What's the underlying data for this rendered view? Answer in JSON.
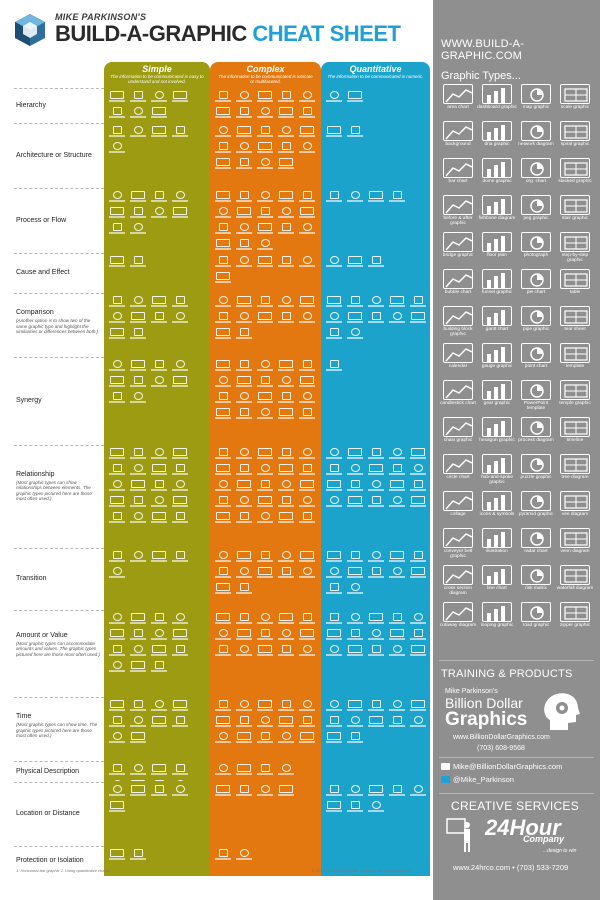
{
  "header": {
    "author": "MIKE PARKINSON'S",
    "title_main": "BUILD-A-GRAPHIC",
    "title_accent": "CHEAT SHEET"
  },
  "columns": [
    {
      "key": "simple",
      "title": "Simple",
      "desc": "The information to be communicated is easy to understand and not involved.",
      "color": "#9c9b11"
    },
    {
      "key": "complex",
      "title": "Complex",
      "desc": "The information to be communicated is intricate or multifaceted.",
      "color": "#e2780f"
    },
    {
      "key": "quant",
      "title": "Quantitative",
      "desc": "The information to be communicated is numeric.",
      "color": "#1ca3cc"
    }
  ],
  "rows": [
    {
      "label": "Hierarchy",
      "sub": "",
      "counts": [
        7,
        10,
        2
      ]
    },
    {
      "label": "Architecture or Structure",
      "sub": "",
      "counts": [
        5,
        14,
        2
      ]
    },
    {
      "label": "Process or Flow",
      "sub": "",
      "counts": [
        10,
        18,
        4
      ]
    },
    {
      "label": "Cause and Effect",
      "sub": "",
      "counts": [
        2,
        6,
        3
      ]
    },
    {
      "label": "Comparison",
      "sub": "(Another option is to show two of the same graphic type and highlight the similarities or differences between both.)",
      "counts": [
        10,
        12,
        12
      ]
    },
    {
      "label": "Synergy",
      "sub": "",
      "counts": [
        10,
        20,
        1
      ]
    },
    {
      "label": "Relationship",
      "sub": "(Most graphic types can show relationships between elements. The graphic types pictured here are those most often used.)",
      "counts": [
        20,
        25,
        20
      ]
    },
    {
      "label": "Transition",
      "sub": "",
      "counts": [
        5,
        12,
        12
      ]
    },
    {
      "label": "Amount or Value",
      "sub": "(Most graphic types can accommodate amounts and values. The graphic types pictured here are those most often used.)",
      "counts": [
        15,
        15,
        15
      ]
    },
    {
      "label": "Time",
      "sub": "(Most graphic types can show time. The graphic types pictured here are those most often used.)",
      "counts": [
        10,
        15,
        12
      ]
    },
    {
      "label": "Physical Description",
      "sub": "",
      "counts": [
        8,
        4,
        0
      ]
    },
    {
      "label": "Location or Distance",
      "sub": "",
      "counts": [
        5,
        4,
        8
      ]
    },
    {
      "label": "Protection or Isolation",
      "sub": "",
      "counts": [
        2,
        2,
        0
      ]
    }
  ],
  "footnote": "1. Horizontal bar graphic\n2. Using quantitative charts",
  "copyright": "© 2013-2014 Billion Dollar Graphics. All rights reserved.",
  "sidebar": {
    "site_url": "WWW.BUILD-A-GRAPHIC.COM",
    "types_title": "Graphic Types...",
    "types": [
      {
        "label": "area chart",
        "icon": "area-chart-icon"
      },
      {
        "label": "dashboard graphic",
        "icon": "dashboard-icon"
      },
      {
        "label": "map graphic",
        "icon": "map-icon"
      },
      {
        "label": "scale graphic",
        "icon": "scale-icon"
      },
      {
        "label": "background",
        "icon": "background-icon"
      },
      {
        "label": "dna graphic",
        "icon": "dna-icon"
      },
      {
        "label": "network diagram",
        "icon": "network-icon"
      },
      {
        "label": "spiral graphic",
        "icon": "spiral-icon"
      },
      {
        "label": "bar chart",
        "icon": "bar-chart-icon"
      },
      {
        "label": "dome graphic",
        "icon": "dome-icon"
      },
      {
        "label": "org. chart",
        "icon": "org-chart-icon"
      },
      {
        "label": "stacked graphic",
        "icon": "stacked-icon"
      },
      {
        "label": "before & after graphic",
        "icon": "before-after-icon"
      },
      {
        "label": "fishbone diagram",
        "icon": "fishbone-icon"
      },
      {
        "label": "peg graphic",
        "icon": "peg-icon"
      },
      {
        "label": "stair graphic",
        "icon": "stair-icon"
      },
      {
        "label": "bridge graphic",
        "icon": "bridge-icon"
      },
      {
        "label": "floor plan",
        "icon": "floor-plan-icon"
      },
      {
        "label": "photograph",
        "icon": "photograph-icon"
      },
      {
        "label": "step-by-step graphic",
        "icon": "step-icon"
      },
      {
        "label": "bubble chart",
        "icon": "bubble-chart-icon"
      },
      {
        "label": "funnel graphic",
        "icon": "funnel-icon"
      },
      {
        "label": "pie chart",
        "icon": "pie-chart-icon"
      },
      {
        "label": "table",
        "icon": "table-icon"
      },
      {
        "label": "building block graphic",
        "icon": "building-block-icon"
      },
      {
        "label": "gantt chart",
        "icon": "gantt-icon"
      },
      {
        "label": "pipe graphic",
        "icon": "pipe-icon"
      },
      {
        "label": "tear sheet",
        "icon": "tear-sheet-icon"
      },
      {
        "label": "calendar",
        "icon": "calendar-icon"
      },
      {
        "label": "gauge graphic",
        "icon": "gauge-icon"
      },
      {
        "label": "point chart",
        "icon": "point-chart-icon"
      },
      {
        "label": "template",
        "icon": "template-icon"
      },
      {
        "label": "candlestick chart",
        "icon": "candlestick-icon"
      },
      {
        "label": "gear graphic",
        "icon": "gear-icon"
      },
      {
        "label": "PowerPoint template",
        "icon": "powerpoint-icon"
      },
      {
        "label": "temple graphic",
        "icon": "temple-icon"
      },
      {
        "label": "chain graphic",
        "icon": "chain-icon"
      },
      {
        "label": "hexagon graphic",
        "icon": "hexagon-icon"
      },
      {
        "label": "process diagram",
        "icon": "process-icon"
      },
      {
        "label": "timeline",
        "icon": "timeline-icon"
      },
      {
        "label": "circle chart",
        "icon": "circle-chart-icon"
      },
      {
        "label": "hub-and-spoke graphic",
        "icon": "hub-spoke-icon"
      },
      {
        "label": "puzzle graphic",
        "icon": "puzzle-icon"
      },
      {
        "label": "tree diagram",
        "icon": "tree-icon"
      },
      {
        "label": "collage",
        "icon": "collage-icon"
      },
      {
        "label": "icons & symbols",
        "icon": "icons-symbols-icon"
      },
      {
        "label": "pyramid graphic",
        "icon": "pyramid-icon"
      },
      {
        "label": "vee diagram",
        "icon": "vee-icon"
      },
      {
        "label": "conveyor belt graphic",
        "icon": "conveyor-icon"
      },
      {
        "label": "illustration",
        "icon": "illustration-icon"
      },
      {
        "label": "radar chart",
        "icon": "radar-chart-icon"
      },
      {
        "label": "venn diagram",
        "icon": "venn-icon"
      },
      {
        "label": "cross section diagram",
        "icon": "cross-section-icon"
      },
      {
        "label": "line chart",
        "icon": "line-chart-icon"
      },
      {
        "label": "risk matrix",
        "icon": "risk-matrix-icon"
      },
      {
        "label": "waterfall diagram",
        "icon": "waterfall-icon"
      },
      {
        "label": "cutaway diagram",
        "icon": "cutaway-icon"
      },
      {
        "label": "looping graphic",
        "icon": "looping-icon"
      },
      {
        "label": "road graphic",
        "icon": "road-icon"
      },
      {
        "label": "zipper graphic",
        "icon": "zipper-icon"
      }
    ],
    "training_title": "TRAINING & PRODUCTS",
    "bdg_author": "Mike Parkinson's",
    "bdg_name": "Billion Dollar",
    "bdg_name2": "Graphics",
    "bdg_url": "www.BillionDollarGraphics.com",
    "bdg_phone": "(703) 608-9568",
    "email": "Mike@BillionDollarGraphics.com",
    "twitter": "@Mike_Parkinson",
    "services_title": "CREATIVE SERVICES",
    "services_big": "24Hour",
    "services_company": "Company",
    "services_tag": "...design to win",
    "services_contact": "www.24hrco.com • (703) 533-7209"
  }
}
